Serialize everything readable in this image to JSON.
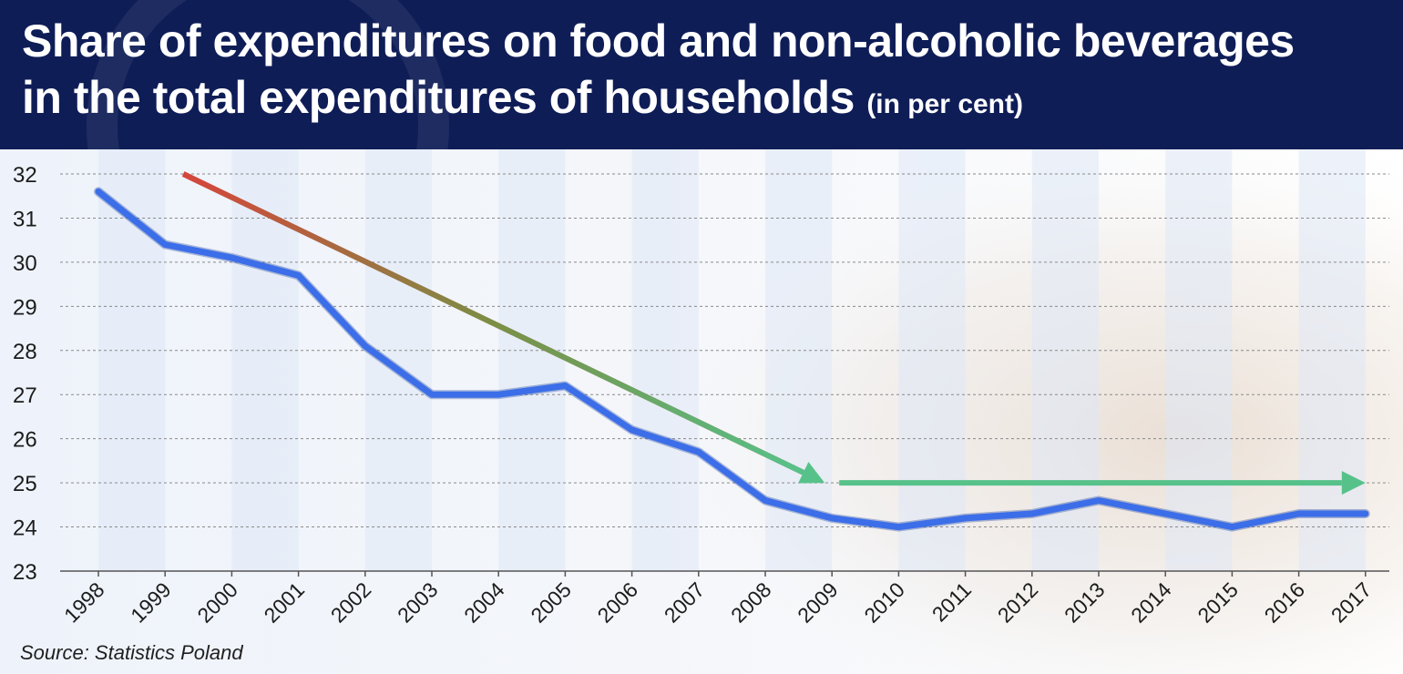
{
  "title": {
    "main_line1": "Share of expenditures on food and non-alcoholic beverages",
    "main_line2": "in the total expenditures of households",
    "unit": "(in per cent)"
  },
  "source": "Source: Statistics Poland",
  "colors": {
    "header_bg": "#0f1d57",
    "series_line": "#3b6ee8",
    "trend_start": "#d6453b",
    "trend_end": "#56c28a",
    "gridline": "#8a8a8a",
    "band": "#dfe8f6"
  },
  "chart_data": {
    "type": "line",
    "title": "Share of expenditures on food and non-alcoholic beverages in the total expenditures of households (in per cent)",
    "xlabel": "",
    "ylabel": "",
    "x": [
      "1998",
      "1999",
      "2000",
      "2001",
      "2002",
      "2003",
      "2004",
      "2005",
      "2006",
      "2007",
      "2008",
      "2009",
      "2010",
      "2011",
      "2012",
      "2013",
      "2014",
      "2015",
      "2016",
      "2017"
    ],
    "series": [
      {
        "values": [
          31.6,
          30.4,
          30.1,
          29.7,
          28.1,
          27.0,
          27.0,
          27.2,
          26.2,
          25.7,
          24.6,
          24.2,
          24.0,
          24.2,
          24.3,
          24.6,
          24.3,
          24.0,
          24.3,
          24.3
        ]
      }
    ],
    "ylim": [
      23,
      32
    ],
    "yticks": [
      23,
      24,
      25,
      26,
      27,
      28,
      29,
      30,
      31,
      32
    ],
    "grid": "horizontal dashed",
    "annotations": [
      {
        "type": "trend-arrow",
        "from": {
          "x": "1999",
          "y": 32
        },
        "to": {
          "x": "2009",
          "y": 25
        },
        "color": "red-to-green gradient"
      },
      {
        "type": "trend-arrow",
        "from": {
          "x": "2009",
          "y": 25
        },
        "to": {
          "x": "2017",
          "y": 25
        },
        "color": "green"
      }
    ]
  }
}
